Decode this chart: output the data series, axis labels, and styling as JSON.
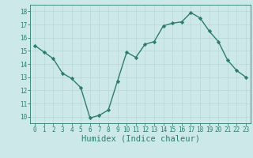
{
  "x": [
    0,
    1,
    2,
    3,
    4,
    5,
    6,
    7,
    8,
    9,
    10,
    11,
    12,
    13,
    14,
    15,
    16,
    17,
    18,
    19,
    20,
    21,
    22,
    23
  ],
  "y": [
    15.4,
    14.9,
    14.4,
    13.3,
    12.9,
    12.2,
    9.9,
    10.1,
    10.5,
    12.7,
    14.9,
    14.5,
    15.5,
    15.7,
    16.9,
    17.1,
    17.2,
    17.9,
    17.5,
    16.5,
    15.7,
    14.3,
    13.5,
    13.0
  ],
  "line_color": "#2d7d6e",
  "marker": "D",
  "marker_size": 2.2,
  "bg_color": "#cce8e8",
  "grid_color": "#b8d8d8",
  "xlabel": "Humidex (Indice chaleur)",
  "xlabel_color": "#2d7d6e",
  "tick_color": "#2d7d6e",
  "ylim": [
    9.5,
    18.5
  ],
  "xlim": [
    -0.5,
    23.5
  ],
  "yticks": [
    10,
    11,
    12,
    13,
    14,
    15,
    16,
    17,
    18
  ],
  "xticks": [
    0,
    1,
    2,
    3,
    4,
    5,
    6,
    7,
    8,
    9,
    10,
    11,
    12,
    13,
    14,
    15,
    16,
    17,
    18,
    19,
    20,
    21,
    22,
    23
  ],
  "tick_fontsize": 5.5,
  "label_fontsize": 7.5
}
